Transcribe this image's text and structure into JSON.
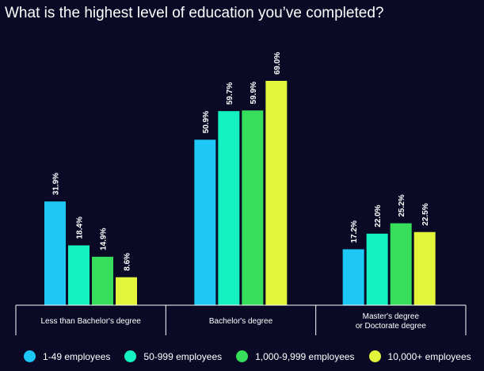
{
  "chart_data": {
    "type": "bar",
    "title": "What is the highest level of education you’ve completed?",
    "categories": [
      "Less than Bachelor's degree",
      "Bachelor's degree",
      "Master's degree or Doctorate degree"
    ],
    "category_lines": [
      [
        "Less than Bachelor's degree"
      ],
      [
        "Bachelor's degree"
      ],
      [
        "Master's degree",
        "or Doctorate degree"
      ]
    ],
    "series": [
      {
        "name": "1-49 employees",
        "color": "#1ec8f5",
        "values": [
          31.9,
          50.9,
          17.2
        ],
        "labels": [
          "31.9%",
          "50.9%",
          "17.2%"
        ]
      },
      {
        "name": "50-999 employees",
        "color": "#14f2c2",
        "values": [
          18.4,
          59.7,
          22.0
        ],
        "labels": [
          "18.4%",
          "59.7%",
          "22.0%"
        ]
      },
      {
        "name": "1,000-9,999 employees",
        "color": "#36de5c",
        "values": [
          14.9,
          59.9,
          25.2
        ],
        "labels": [
          "14.9%",
          "59.9%",
          "25.2%"
        ]
      },
      {
        "name": "10,000+ employees",
        "color": "#e2f53a",
        "values": [
          8.6,
          69.0,
          22.5
        ],
        "labels": [
          "8.6%",
          "69.0%",
          "22.5%"
        ]
      }
    ],
    "ylim": [
      0,
      75
    ],
    "unit": "%",
    "grid": false,
    "legend_position": "bottom"
  }
}
